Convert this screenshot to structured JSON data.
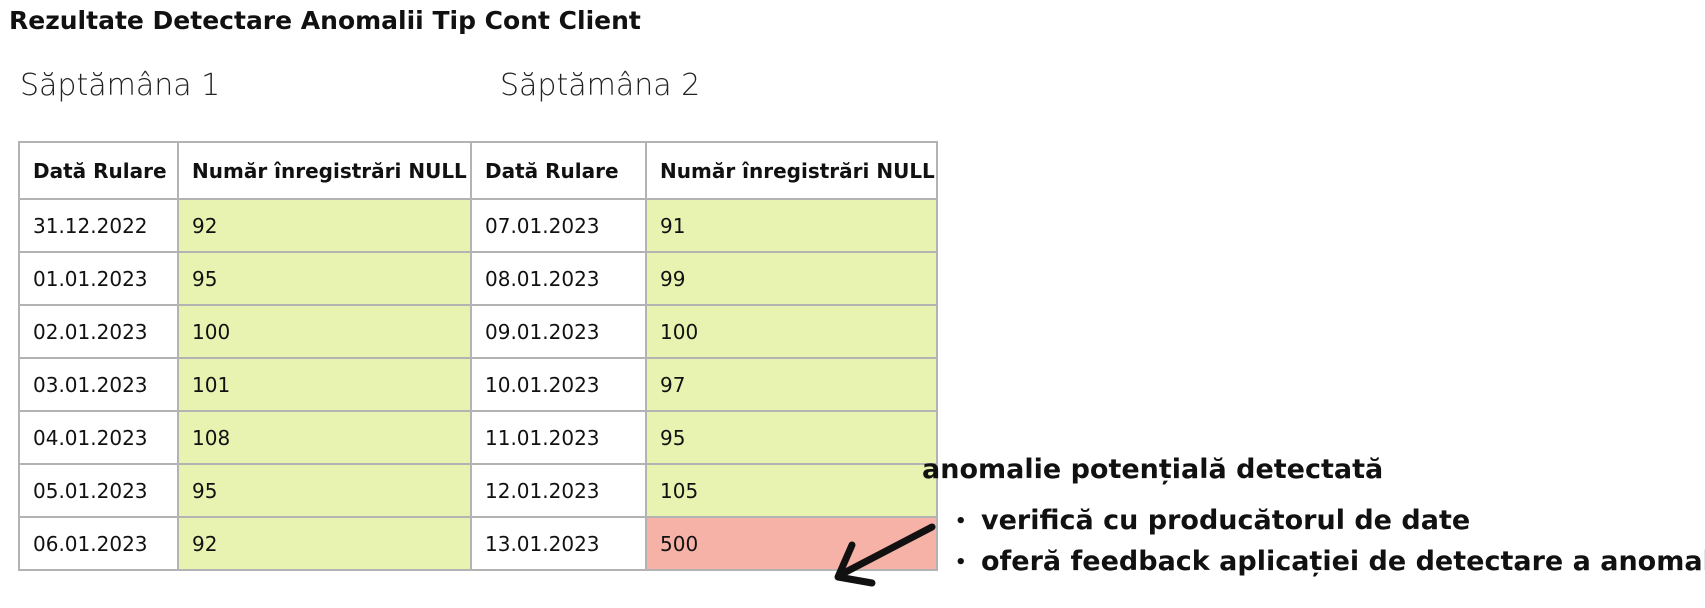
{
  "title": "Rezultate Detectare Anomalii Tip Cont Client",
  "weeks": [
    "Săptămâna 1",
    "Săptămâna 2"
  ],
  "table": {
    "header": [
      "Dată Rulare",
      "Număr înregistrări NULL",
      "Dată Rulare",
      "Număr înregistrări NULL"
    ],
    "rows": [
      [
        "31.12.2022",
        92,
        "07.01.2023",
        91
      ],
      [
        "01.01.2023",
        95,
        "08.01.2023",
        99
      ],
      [
        "02.01.2023",
        100,
        "09.01.2023",
        100
      ],
      [
        "03.01.2023",
        101,
        "10.01.2023",
        97
      ],
      [
        "04.01.2023",
        108,
        "11.01.2023",
        95
      ],
      [
        "05.01.2023",
        95,
        "12.01.2023",
        105
      ],
      [
        "06.01.2023",
        92,
        "13.01.2023",
        500
      ]
    ]
  },
  "annotation": {
    "title": "anomalie potențială detectată",
    "bullets": [
      "verifică cu producătorul de date",
      "oferă feedback aplicației de detectare a anomaliilor"
    ]
  }
}
